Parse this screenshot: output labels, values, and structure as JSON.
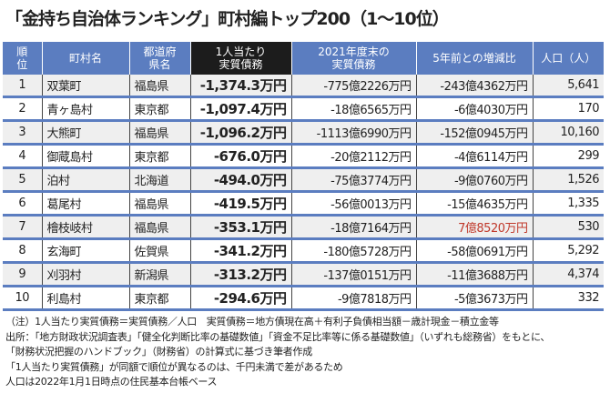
{
  "title": "「金持ち自治体ランキング」町村編トップ200（1〜10位）",
  "headers": [
    "順位",
    "町村名",
    "都道府県名",
    "1人当たり実質債務",
    "2021年度末の実質債務",
    "5年前との増減比",
    "人口（人）"
  ],
  "rows": [
    {
      "rank": "1",
      "name": "双葉町",
      "pref": "福島県",
      "per_capita": "-1,374.3万円",
      "debt": "-775億2226万円",
      "change": "-243億4362万円",
      "pop": "5,641"
    },
    {
      "rank": "2",
      "name": "青ヶ島村",
      "pref": "東京都",
      "per_capita": "-1,097.4万円",
      "debt": "-18億6565万円",
      "change": "-6億4030万円",
      "pop": "170"
    },
    {
      "rank": "3",
      "name": "大熊町",
      "pref": "福島県",
      "per_capita": "-1,096.2万円",
      "debt": "-1113億6990万円",
      "change": "-152億0945万円",
      "pop": "10,160"
    },
    {
      "rank": "4",
      "name": "御蔵島村",
      "pref": "東京都",
      "per_capita": "-676.0万円",
      "debt": "-20億2112万円",
      "change": "-4億6114万円",
      "pop": "299"
    },
    {
      "rank": "5",
      "name": "泊村",
      "pref": "北海道",
      "per_capita": "-494.0万円",
      "debt": "-75億3774万円",
      "change": "-9億0760万円",
      "pop": "1,526"
    },
    {
      "rank": "6",
      "name": "葛尾村",
      "pref": "福島県",
      "per_capita": "-419.5万円",
      "debt": "-56億0013万円",
      "change": "-15億4635万円",
      "pop": "1,335"
    },
    {
      "rank": "7",
      "name": "檜枝岐村",
      "pref": "福島県",
      "per_capita": "-353.1万円",
      "debt": "-18億7164万円",
      "change": "7億8520万円",
      "pop": "530"
    },
    {
      "rank": "8",
      "name": "玄海町",
      "pref": "佐賀県",
      "per_capita": "-341.2万円",
      "debt": "-180億5728万円",
      "change": "-58億0691万円",
      "pop": "5,292"
    },
    {
      "rank": "9",
      "name": "刈羽村",
      "pref": "新潟県",
      "per_capita": "-313.2万円",
      "debt": "-137億0151万円",
      "change": "-11億3688万円",
      "pop": "4,374"
    },
    {
      "rank": "10",
      "name": "利島村",
      "pref": "東京都",
      "per_capita": "-294.6万円",
      "debt": "-9億7818万円",
      "change": "-5億3673万円",
      "pop": "332"
    }
  ],
  "notes": [
    "（注）1人当たり実質債務＝実質債務／人口　実質債務＝地方債現在高＋有利子負債相当額－歳計現金－積立金等",
    "出所：「地方財政状況調査表」「健全化判断比率の基礎数値」「資金不足比率等に係る基礎数値」（いずれも総務省）をもとに、",
    "「財務状況把握のハンドブック」（財務省）の計算式に基づき筆者作成",
    "「1人当たり実質債務」が同額で順位が異なるのは、千円未満で差があるため",
    "人口は2022年1月1日時点の住民基本台帳ベース"
  ],
  "colors": {
    "header": "#5b7dc0",
    "highlight_header": "#1c1c1c",
    "positive_change": "#c0392b"
  }
}
